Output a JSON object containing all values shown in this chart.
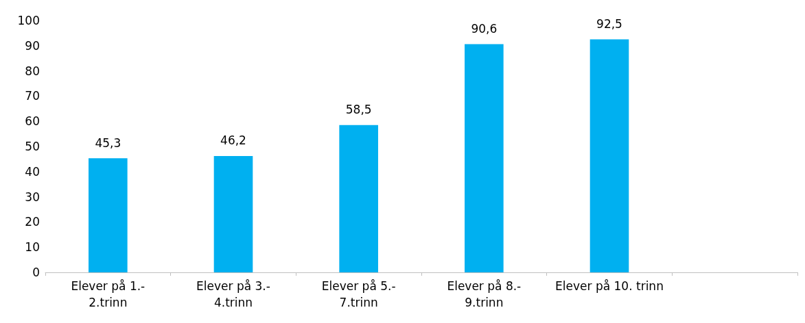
{
  "chart_data": {
    "type": "bar",
    "categories": [
      "Elever på 1.-2.trinn",
      "Elever på 3.-4.trinn",
      "Elever på 5.-7.trinn",
      "Elever på 8.-9.trinn",
      "Elever på 10. trinn",
      null
    ],
    "values": [
      45.3,
      46.2,
      58.5,
      90.6,
      92.5,
      null
    ],
    "value_labels": [
      "45,3",
      "46,2",
      "58,5",
      "90,6",
      "92,5",
      null
    ],
    "color": "#00b0f0",
    "ylim": [
      0,
      100
    ],
    "yticks": [
      0,
      10,
      20,
      30,
      40,
      50,
      60,
      70,
      80,
      90,
      100
    ],
    "grid": false
  }
}
